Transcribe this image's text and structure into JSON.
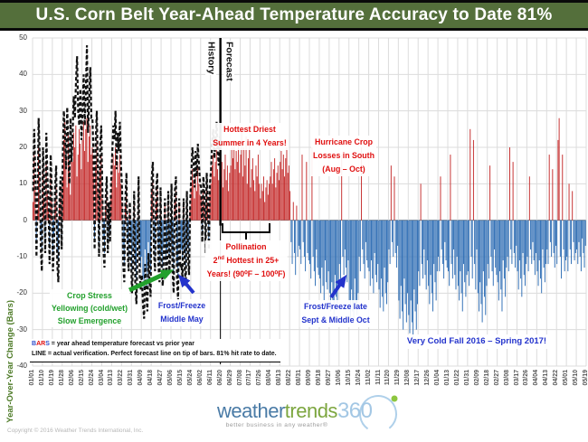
{
  "title": "U.S. Corn Belt Year-Ahead Temperature Accuracy to Date 81%",
  "colors": {
    "title_bg": "#546F3B",
    "bar_positive": "#C42B2B",
    "bar_negative": "#2E6DB4",
    "verification_line": "#111111",
    "annotation_red": "#E01010",
    "annotation_green": "#22A02C",
    "annotation_blue": "#2333CC",
    "axis_title_green": "#4E7B28"
  },
  "legend": {
    "l_b": "B",
    "l_a": "A",
    "l_r": "R",
    "l_s": "S",
    "line1_rest": " = year ahead temperature forecast vs prior year",
    "line2": "LINE = actual verification.  Perfect forecast line on tip of bars. 81% hit rate to date."
  },
  "annotations": {
    "hottest": {
      "line1": "Hottest Driest",
      "line2": "Summer in 4 Years!"
    },
    "hurricane": {
      "line1": "Hurricane Crop",
      "line2": "Losses in South",
      "line3": "(Aug – Oct)"
    },
    "pollination": {
      "line1": "Pollination",
      "line2_num": "2",
      "line2_sup": "nd",
      "line2_rest": " Hottest in 25+",
      "line3": "Years! (90⁰F – 100⁰F)"
    },
    "crop_stress": {
      "line1": "Crop Stress",
      "line2": "Yellowing (cold/wet)",
      "line3": "Slow Emergence"
    },
    "frost_may": {
      "line1": "Frost/Freeze",
      "line2": "Middle May"
    },
    "frost_oct": {
      "line1": "Frost/Freeze late",
      "line2": "Sept & Middle Oct"
    },
    "very_cold": {
      "line1": "Very Cold Fall 2016 – Spring 2017!"
    }
  },
  "logo": {
    "word1": "weather",
    "word2": "trends",
    "word3": "360",
    "tagline": "better business in any weather®"
  },
  "footer": {
    "copyright": "Copyright © 2016  Weather Trends International, Inc."
  },
  "chart_data": {
    "type": "bar",
    "title": "U.S. Corn Belt Year-Ahead Temperature Accuracy to Date 81%",
    "ylabel": "Year-Over-Year Change (Bars)",
    "ylim": [
      -40,
      50
    ],
    "grid": true,
    "y_ticks": [
      50,
      40,
      30,
      20,
      10,
      0,
      -10,
      -20,
      -30,
      -40
    ],
    "x_labels": [
      "01/01",
      "01/10",
      "01/19",
      "01/28",
      "02/06",
      "02/15",
      "02/24",
      "03/04",
      "03/13",
      "03/22",
      "03/31",
      "04/09",
      "04/18",
      "04/27",
      "05/06",
      "05/15",
      "05/24",
      "06/02",
      "06/11",
      "06/20",
      "06/29",
      "07/08",
      "07/17",
      "07/26",
      "08/04",
      "08/13",
      "08/22",
      "08/31",
      "09/09",
      "09/18",
      "09/27",
      "10/06",
      "10/15",
      "10/24",
      "11/02",
      "11/11",
      "11/20",
      "11/29",
      "12/08",
      "12/17",
      "12/26",
      "01/04",
      "01/13",
      "01/22",
      "01/31",
      "02/09",
      "02/18",
      "02/27",
      "03/08",
      "03/17",
      "03/26",
      "04/04",
      "04/13",
      "04/22",
      "05/01",
      "05/10",
      "05/19"
    ],
    "divider_index": 19,
    "history_label": "History",
    "forecast_label": "Forecast",
    "series_bars_name": "year ahead temperature forecast vs prior year",
    "series_line_name": "actual verification",
    "days_per_tick": 9,
    "bars": [
      5,
      18,
      9,
      -6,
      3,
      20,
      12,
      -4,
      -8,
      14,
      6,
      -5,
      16,
      8,
      3,
      -7,
      12,
      5,
      -9,
      -4,
      6,
      10,
      -8,
      -11,
      4,
      8,
      -5,
      12,
      22,
      27,
      18,
      9,
      24,
      15,
      7,
      20,
      16,
      24,
      20,
      26,
      12,
      18,
      25,
      21,
      14,
      22,
      27,
      19,
      25,
      28,
      16,
      23,
      26,
      18,
      20,
      12,
      -5,
      15,
      22,
      8,
      -7,
      14,
      18,
      6,
      -5,
      -9,
      4,
      8,
      -6,
      3,
      -4,
      7,
      12,
      18,
      15,
      20,
      9,
      16,
      13,
      18,
      10,
      5,
      -8,
      -12,
      4,
      9,
      -6,
      -10,
      3,
      -5,
      -14,
      -8,
      5,
      -12,
      -16,
      -6,
      8,
      -10,
      -13,
      -10,
      -16,
      -19,
      -8,
      -14,
      -18,
      -6,
      -12,
      -15,
      8,
      11,
      -6,
      -10,
      5,
      9,
      -8,
      -12,
      6,
      -9,
      -13,
      -7,
      4,
      -11,
      -8,
      5,
      -10,
      -6,
      7,
      -10,
      -14,
      5,
      8,
      -12,
      -16,
      4,
      -9,
      -8,
      -11,
      4,
      -9,
      -13,
      5,
      -7,
      -10,
      3,
      9,
      14,
      11,
      6,
      13,
      8,
      15,
      10,
      7,
      6,
      -4,
      8,
      5,
      -6,
      9,
      4,
      -5,
      7,
      10,
      15,
      18,
      12,
      16,
      20,
      14,
      11,
      17,
      12,
      16,
      9,
      14,
      18,
      11,
      15,
      8,
      13,
      15,
      20,
      17,
      22,
      14,
      19,
      16,
      21,
      13,
      18,
      25,
      12,
      20,
      15,
      23,
      10,
      17,
      21,
      9,
      14,
      17,
      11,
      8,
      15,
      12,
      18,
      10,
      6,
      10,
      8,
      12,
      5,
      9,
      11,
      7,
      10,
      12,
      16,
      10,
      14,
      17,
      9,
      13,
      15,
      11,
      16,
      19,
      14,
      18,
      12,
      17,
      20,
      13,
      15,
      8,
      -6,
      -12,
      5,
      -9,
      -15,
      4,
      -10,
      -7,
      -8,
      -12,
      18,
      -6,
      -10,
      -14,
      16,
      -9,
      -11,
      -12,
      -16,
      20,
      -10,
      -14,
      -18,
      -8,
      -13,
      -15,
      -16,
      -20,
      -13,
      -18,
      -22,
      -11,
      -17,
      -19,
      -14,
      -20,
      -25,
      -17,
      -22,
      -26,
      -15,
      -21,
      -24,
      -18,
      -12,
      -16,
      18,
      -10,
      -15,
      -8,
      -13,
      -17,
      -11,
      -22,
      -27,
      -19,
      -25,
      -28,
      -16,
      -23,
      -26,
      -20,
      -10,
      -14,
      20,
      -8,
      -12,
      -16,
      -6,
      -11,
      -13,
      -14,
      -18,
      -11,
      -16,
      -20,
      -9,
      -15,
      -17,
      -12,
      -19,
      -24,
      -16,
      -21,
      -25,
      -13,
      -20,
      -23,
      -17,
      -8,
      -12,
      15,
      -6,
      -10,
      12,
      -9,
      -13,
      -7,
      -22,
      -27,
      -18,
      -25,
      -30,
      -16,
      -23,
      -28,
      -20,
      -26,
      -31,
      -22,
      -28,
      -34,
      -19,
      -25,
      -30,
      -23,
      -14,
      -18,
      10,
      -12,
      -16,
      -8,
      -15,
      -19,
      -11,
      -18,
      -23,
      -15,
      -20,
      -25,
      -12,
      -17,
      -22,
      -14,
      -10,
      -14,
      12,
      -8,
      -12,
      -16,
      -6,
      -11,
      -13,
      -14,
      -18,
      18,
      -12,
      -16,
      -8,
      -15,
      -19,
      -10,
      -18,
      -22,
      -14,
      -20,
      -25,
      -12,
      -17,
      -21,
      -15,
      -14,
      -18,
      25,
      -10,
      -16,
      22,
      -12,
      -19,
      -8,
      -20,
      -25,
      -17,
      -23,
      -28,
      -14,
      -21,
      -26,
      -18,
      -12,
      -16,
      15,
      -10,
      -14,
      -18,
      -8,
      -13,
      -15,
      -17,
      -22,
      -14,
      -19,
      -25,
      -11,
      -16,
      -21,
      -13,
      -10,
      -14,
      20,
      -8,
      -12,
      16,
      -9,
      -13,
      -7,
      -14,
      -19,
      -11,
      -16,
      -21,
      -9,
      -15,
      -18,
      -12,
      -10,
      -14,
      12,
      -8,
      -12,
      -6,
      -11,
      -15,
      -9,
      -14,
      -18,
      -11,
      -16,
      -20,
      -8,
      -13,
      -17,
      -12,
      -8,
      -12,
      18,
      -6,
      -10,
      14,
      -9,
      -13,
      -7,
      -12,
      22,
      28,
      -10,
      -16,
      18,
      -8,
      -14,
      -11,
      -10,
      -14,
      10,
      -8,
      -12,
      8,
      -6,
      -11,
      -9,
      -8,
      -12,
      -6,
      -10,
      -14,
      -5,
      -9,
      -13,
      -7
    ],
    "line": [
      8,
      25,
      14,
      -10,
      5,
      28,
      18,
      -8,
      -14,
      20,
      10,
      -9,
      24,
      12,
      5,
      -12,
      18,
      8,
      -14,
      -7,
      9,
      15,
      -12,
      -17,
      6,
      12,
      -8,
      18,
      30,
      24,
      14,
      31,
      20,
      10,
      28,
      16,
      24,
      34,
      28,
      38,
      45,
      30,
      26,
      36,
      22,
      30,
      40,
      26,
      36,
      48,
      24,
      32,
      42,
      28,
      28,
      18,
      -8,
      22,
      30,
      12,
      -10,
      20,
      26,
      9,
      -8,
      -13,
      6,
      12,
      -9,
      5,
      -6,
      10,
      18,
      26,
      22,
      30,
      14,
      24,
      19,
      27,
      15,
      8,
      -12,
      -17,
      6,
      13,
      -9,
      -14,
      5,
      -8,
      -20,
      -12,
      8,
      -17,
      -23,
      -9,
      12,
      -15,
      -19,
      -15,
      -23,
      -27,
      -12,
      -20,
      -25,
      -9,
      -17,
      -21,
      12,
      16,
      -9,
      -14,
      8,
      13,
      -12,
      -17,
      9,
      -13,
      -18,
      -10,
      6,
      -16,
      -12,
      8,
      -14,
      -9,
      10,
      -14,
      -20,
      8,
      12,
      -17,
      -22,
      6,
      -13,
      -12,
      -16,
      6,
      -13,
      -18,
      8,
      -10,
      -15,
      5,
      13,
      20,
      16,
      9,
      19,
      12,
      21,
      15,
      10,
      9,
      -6,
      12,
      8,
      -9,
      13,
      6,
      -8,
      10,
      14,
      21,
      25,
      17,
      22,
      27,
      19,
      15,
      23
    ]
  }
}
